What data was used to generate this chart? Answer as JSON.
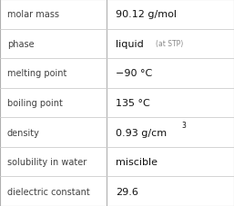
{
  "rows": [
    {
      "label": "molar mass",
      "value": "90.12 g/mol",
      "extra": null,
      "superscript": null
    },
    {
      "label": "phase",
      "value": "liquid",
      "extra": "(at STP)",
      "superscript": null
    },
    {
      "label": "melting point",
      "value": "−90 °C",
      "extra": null,
      "superscript": null
    },
    {
      "label": "boiling point",
      "value": "135 °C",
      "extra": null,
      "superscript": null
    },
    {
      "label": "density",
      "value": "0.93 g/cm",
      "extra": null,
      "superscript": "3"
    },
    {
      "label": "solubility in water",
      "value": "miscible",
      "extra": null,
      "superscript": null
    },
    {
      "label": "dielectric constant",
      "value": "29.6",
      "extra": null,
      "superscript": null
    }
  ],
  "background_color": "#ffffff",
  "border_color": "#b0b0b0",
  "label_color": "#404040",
  "value_color": "#111111",
  "extra_color": "#888888",
  "label_fontsize": 7.0,
  "value_fontsize": 8.0,
  "extra_fontsize": 5.5,
  "super_fontsize": 5.5,
  "divider_color": "#cccccc",
  "col_split": 0.455
}
